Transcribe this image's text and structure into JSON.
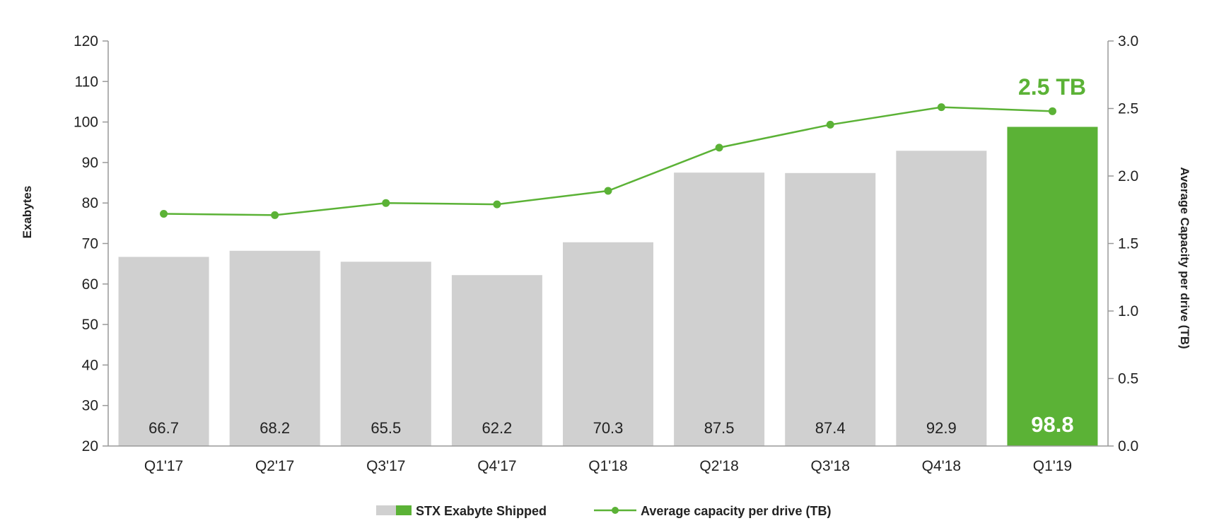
{
  "chart_data": {
    "type": "bar",
    "categories": [
      "Q1'17",
      "Q2'17",
      "Q3'17",
      "Q4'17",
      "Q1'18",
      "Q2'18",
      "Q3'18",
      "Q4'18",
      "Q1'19"
    ],
    "series": [
      {
        "name": "STX Exabyte Shipped",
        "type": "bar",
        "axis": "left",
        "values": [
          66.7,
          68.2,
          65.5,
          62.2,
          70.3,
          87.5,
          87.4,
          92.9,
          98.8
        ],
        "labels": [
          "66.7",
          "68.2",
          "65.5",
          "62.2",
          "70.3",
          "87.5",
          "87.4",
          "92.9",
          "98.8"
        ]
      },
      {
        "name": "Average capacity per drive (TB)",
        "type": "line",
        "axis": "right",
        "values": [
          1.72,
          1.71,
          1.8,
          1.79,
          1.89,
          2.21,
          2.38,
          2.51,
          2.48
        ]
      }
    ],
    "ylabel": "Exabytes",
    "ylabel_right": "Average Capacity per drive (TB)",
    "ylim": [
      20,
      120
    ],
    "ylim_right": [
      0.0,
      3.0
    ],
    "yticks": [
      "20",
      "30",
      "40",
      "50",
      "60",
      "70",
      "80",
      "90",
      "100",
      "110",
      "120"
    ],
    "yticks_right": [
      "0.0",
      "0.5",
      "1.0",
      "1.5",
      "2.0",
      "2.5",
      "3.0"
    ],
    "annotation": "2.5 TB",
    "highlight_index": 8,
    "legend_position": "bottom-center",
    "grid": false,
    "colors": {
      "bar": "#d0d0d0",
      "bar_highlight": "#5bb236",
      "line": "#5bb236",
      "axis": "#999999",
      "text": "#222222"
    }
  }
}
